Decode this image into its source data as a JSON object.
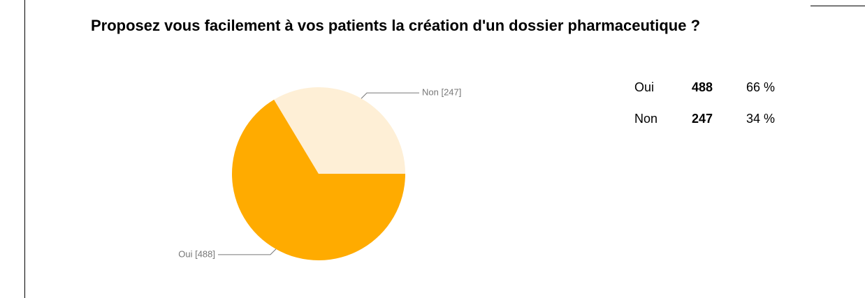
{
  "chart_data": {
    "type": "pie",
    "title": "Proposez vous facilement à vos patients la création d'un dossier pharmaceutique ?",
    "categories": [
      "Oui",
      "Non"
    ],
    "values": [
      488,
      247
    ],
    "value_labels": [
      "Oui [488]",
      "Non [247]"
    ],
    "percent_labels": [
      "66 %",
      "34 %"
    ],
    "colors": [
      "#ffab00",
      "#feefd6"
    ]
  }
}
